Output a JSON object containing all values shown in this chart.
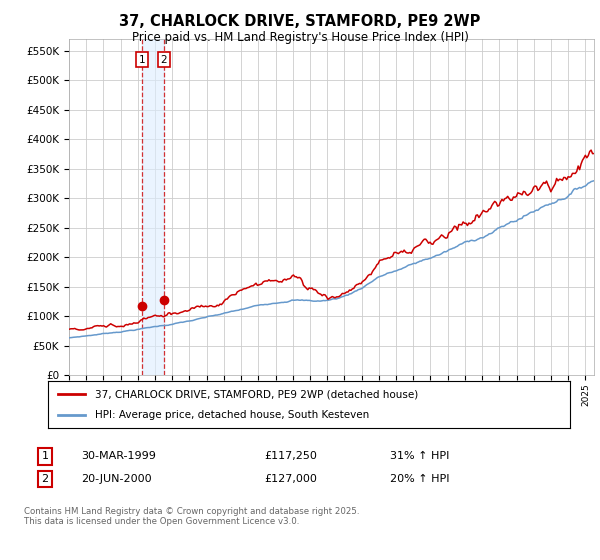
{
  "title": "37, CHARLOCK DRIVE, STAMFORD, PE9 2WP",
  "subtitle": "Price paid vs. HM Land Registry's House Price Index (HPI)",
  "legend_line1": "37, CHARLOCK DRIVE, STAMFORD, PE9 2WP (detached house)",
  "legend_line2": "HPI: Average price, detached house, South Kesteven",
  "footer": "Contains HM Land Registry data © Crown copyright and database right 2025.\nThis data is licensed under the Open Government Licence v3.0.",
  "transaction1_label": "1",
  "transaction1_date": "30-MAR-1999",
  "transaction1_price": "£117,250",
  "transaction1_hpi": "31% ↑ HPI",
  "transaction2_label": "2",
  "transaction2_date": "20-JUN-2000",
  "transaction2_price": "£127,000",
  "transaction2_hpi": "20% ↑ HPI",
  "red_color": "#cc0000",
  "blue_color": "#6699cc",
  "background_color": "#ffffff",
  "grid_color": "#cccccc",
  "transaction1_x": 1999.25,
  "transaction1_y": 117250,
  "transaction2_x": 2000.5,
  "transaction2_y": 127000,
  "xmin": 1995.0,
  "xmax": 2025.5,
  "ymin": 0,
  "ymax": 570000,
  "yticks": [
    0,
    50000,
    100000,
    150000,
    200000,
    250000,
    300000,
    350000,
    400000,
    450000,
    500000,
    550000
  ]
}
